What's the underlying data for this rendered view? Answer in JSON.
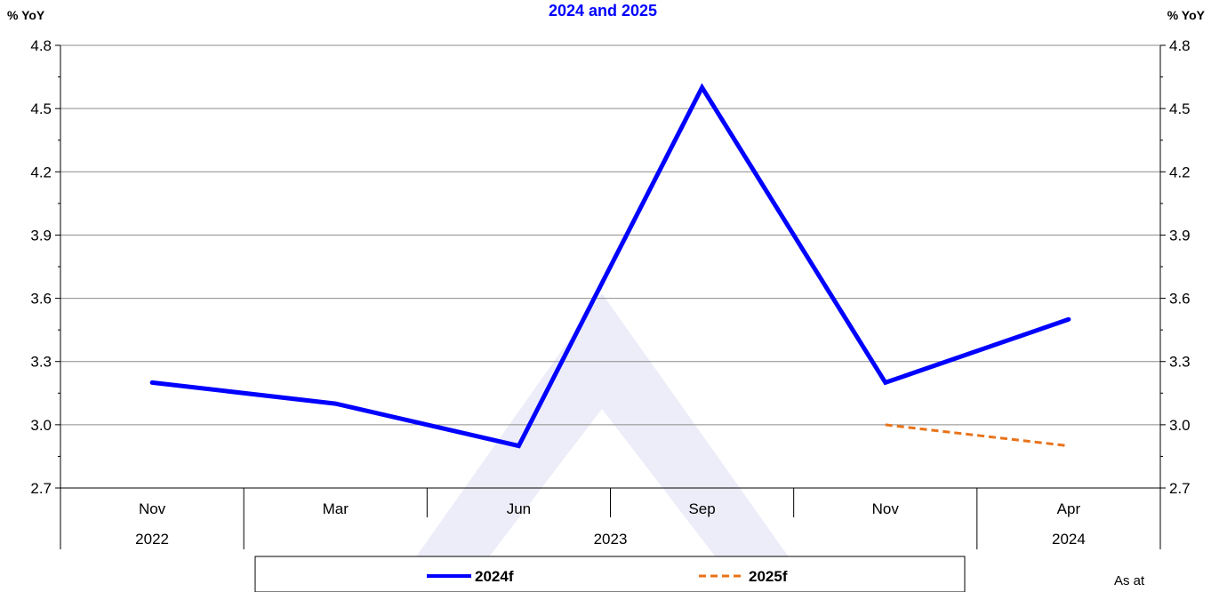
{
  "chart_data": {
    "type": "line",
    "title": "2024 and 2025",
    "ylabel_left": "% YoY",
    "ylabel_right": "% YoY",
    "ylim": [
      2.7,
      4.8
    ],
    "yticks": [
      2.7,
      3.0,
      3.3,
      3.6,
      3.9,
      4.2,
      4.5,
      4.8
    ],
    "ytick_labels": [
      "2.7",
      "3.0",
      "3.3",
      "3.6",
      "3.9",
      "4.2",
      "4.5",
      "4.8"
    ],
    "categories": [
      "Nov",
      "Mar",
      "Jun",
      "Sep",
      "Nov",
      "Apr"
    ],
    "year_groups": [
      {
        "label": "2022",
        "start": 0,
        "end": 0
      },
      {
        "label": "2023",
        "start": 1,
        "end": 4
      },
      {
        "label": "2024",
        "start": 5,
        "end": 5
      }
    ],
    "series": [
      {
        "name": "2024f",
        "color": "#0000ff",
        "style": "solid",
        "values": [
          3.2,
          3.1,
          2.9,
          4.6,
          3.2,
          3.5
        ]
      },
      {
        "name": "2025f",
        "color": "#e8731a",
        "style": "dashed",
        "values": [
          null,
          null,
          null,
          null,
          3.0,
          2.9
        ]
      }
    ],
    "grid": true,
    "legend_position": "bottom",
    "note": "As at"
  }
}
